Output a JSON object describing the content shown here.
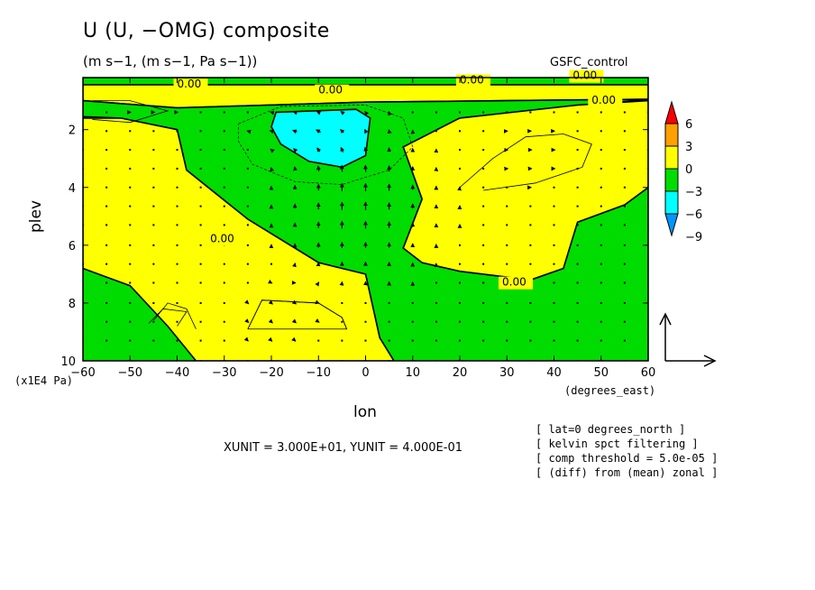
{
  "title": "U (U, −OMG) composite",
  "subtitle": "(m s−1, (m s−1, Pa s−1))",
  "dataset": "GSFC_control",
  "axis_scale": "(x1E4 Pa)",
  "x_units": "(degrees_east)",
  "xlabel": "lon",
  "ylabel": "plev",
  "vector_units": "XUNIT = 3.000E+01, YUNIT = 4.000E-01",
  "notes": [
    "[ lat=0 degrees_north ]",
    "[ kelvin spct filtering ]",
    "[ comp threshold = 5.0e-05 ]",
    "[ (diff) from (mean) zonal ]"
  ],
  "colors": {
    "level_gt_3": "#ff9f00",
    "level_0_3": "#ffff00",
    "level_m3_0": "#00dc00",
    "level_m6_m3": "#00ffff",
    "level_m9_m6": "#0096ff",
    "level_arrow_top": "#ff0000",
    "level_arrow_bottom": "#0050ff"
  },
  "chart_data": {
    "type": "contour + vector",
    "x": {
      "label": "lon",
      "units": "degrees_east",
      "range": [
        -60,
        60
      ],
      "ticks": [
        -60,
        -50,
        -40,
        -30,
        -20,
        -10,
        0,
        10,
        20,
        30,
        40,
        50,
        60
      ]
    },
    "y": {
      "label": "plev",
      "units": "x1E4 Pa",
      "range": [
        0.2,
        10
      ],
      "inverted": true,
      "ticks": [
        2,
        4,
        6,
        8,
        10
      ]
    },
    "colorbar": {
      "labels": [
        "6",
        "3",
        "0",
        "−3",
        "−6",
        "−9"
      ],
      "levels": [
        6,
        3,
        0,
        -3,
        -6,
        -9
      ]
    },
    "contour_labels": [
      "0.00",
      "0.00",
      "0.00",
      "0.00",
      "0.00",
      "0.00",
      "0.00"
    ],
    "regions": [
      {
        "level": "0_3",
        "points": [
          [
            -60,
            0.2
          ],
          [
            60,
            0.2
          ],
          [
            60,
            0.2
          ],
          [
            -60,
            0.2
          ]
        ]
      },
      {
        "level": "m3_0",
        "points": [
          [
            -60,
            0.2
          ],
          [
            60,
            0.2
          ],
          [
            60,
            0.45
          ],
          [
            -60,
            0.45
          ]
        ]
      },
      {
        "level": "0_3",
        "points": [
          [
            -60,
            0.45
          ],
          [
            60,
            0.45
          ],
          [
            60,
            0.95
          ],
          [
            30,
            1.0
          ],
          [
            0,
            1.05
          ],
          [
            -20,
            1.15
          ],
          [
            -40,
            1.25
          ],
          [
            -60,
            1.0
          ]
        ]
      },
      {
        "level": "m3_0",
        "points": [
          [
            -60,
            1.0
          ],
          [
            -40,
            1.25
          ],
          [
            -20,
            1.15
          ],
          [
            0,
            1.05
          ],
          [
            30,
            1.0
          ],
          [
            60,
            0.95
          ],
          [
            60,
            4.0
          ],
          [
            55,
            4.6
          ],
          [
            45,
            5.2
          ],
          [
            42,
            6.8
          ],
          [
            35,
            7.2
          ],
          [
            20,
            6.9
          ],
          [
            12,
            6.6
          ],
          [
            8,
            6.1
          ],
          [
            12,
            4.4
          ],
          [
            8,
            2.6
          ],
          [
            20,
            1.6
          ],
          [
            50,
            1.1
          ],
          [
            60,
            0.95
          ],
          [
            60,
            10
          ],
          [
            6,
            10
          ],
          [
            3,
            9.2
          ],
          [
            0,
            7.0
          ],
          [
            -10,
            6.6
          ],
          [
            -25,
            5.1
          ],
          [
            -38,
            3.4
          ],
          [
            -40,
            2.0
          ],
          [
            -52,
            1.6
          ],
          [
            -60,
            1.55
          ]
        ]
      },
      {
        "level": "0_3",
        "points": [
          [
            -60,
            1.6
          ],
          [
            -52,
            1.6
          ],
          [
            -40,
            2.0
          ],
          [
            -38,
            3.4
          ],
          [
            -25,
            5.1
          ],
          [
            -10,
            6.6
          ],
          [
            0,
            7.0
          ],
          [
            3,
            9.2
          ],
          [
            6,
            10
          ],
          [
            -60,
            10
          ]
        ]
      },
      {
        "level": "m3_0",
        "points": [
          [
            -60,
            6.8
          ],
          [
            -50,
            7.4
          ],
          [
            -42,
            8.8
          ],
          [
            -36,
            10
          ],
          [
            -60,
            10
          ]
        ]
      },
      {
        "level": "0_3",
        "points": [
          [
            12,
            4.4
          ],
          [
            8,
            2.6
          ],
          [
            20,
            1.6
          ],
          [
            45,
            1.15
          ],
          [
            60,
            1.0
          ],
          [
            60,
            4.0
          ],
          [
            55,
            4.6
          ],
          [
            45,
            5.2
          ],
          [
            42,
            6.8
          ],
          [
            35,
            7.2
          ],
          [
            20,
            6.9
          ],
          [
            12,
            6.6
          ],
          [
            8,
            6.1
          ]
        ]
      },
      {
        "level": "m6_m3",
        "points": [
          [
            -19,
            1.4
          ],
          [
            -2,
            1.3
          ],
          [
            1,
            1.6
          ],
          [
            0,
            2.9
          ],
          [
            -5,
            3.3
          ],
          [
            -12,
            3.1
          ],
          [
            -18,
            2.5
          ],
          [
            -20,
            1.9
          ]
        ]
      }
    ],
    "vectors": {
      "x": [
        -60,
        -55,
        -50,
        -45,
        -40,
        -35,
        -30,
        -25,
        -20,
        -15,
        -10,
        -5,
        0,
        5,
        10,
        15,
        20,
        25,
        30,
        35,
        40,
        45,
        50,
        55,
        60
      ],
      "y": [
        1.4,
        2.05,
        2.7,
        3.35,
        4.0,
        4.65,
        5.3,
        6.0,
        6.65,
        7.3,
        8.0,
        8.65,
        9.3,
        10.0
      ],
      "note": "Arrow field (u, -omega); reference arrow XUNIT=30, YUNIT=0.4"
    }
  }
}
